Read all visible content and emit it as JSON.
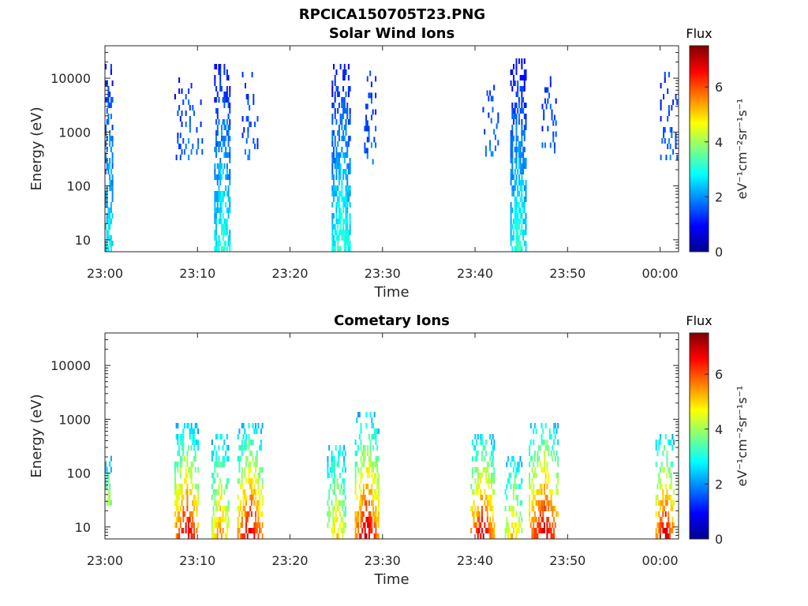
{
  "figure_title": "RPCICA150705T23.PNG",
  "colormap": [
    "#00008f",
    "#0000ff",
    "#0080ff",
    "#00ffff",
    "#80ff80",
    "#ffff00",
    "#ff8000",
    "#ff0000",
    "#800000"
  ],
  "chart_data": [
    {
      "type": "heatmap",
      "title": "Solar Wind Ions",
      "xlabel": "Time",
      "ylabel": "Energy (eV)",
      "x_ticks": [
        "23:00",
        "23:10",
        "23:20",
        "23:30",
        "23:40",
        "23:50",
        "00:00"
      ],
      "y_ticks": [
        "10",
        "100",
        "1000",
        "10000"
      ],
      "y_scale": "log",
      "xlim_minutes": [
        0,
        62
      ],
      "ylim_eV": [
        6,
        40000
      ],
      "colorbar": {
        "title": "Flux",
        "label": "eV⁻¹cm⁻²sr⁻¹s⁻¹",
        "ticks": [
          "0",
          "2",
          "4",
          "6"
        ],
        "range": [
          0,
          7.5
        ]
      },
      "bursts": [
        {
          "t": [
            0.0,
            0.8
          ],
          "energy_eV": [
            6,
            15000
          ],
          "flux_at_low_E": 3.0,
          "flux_at_high_E": 1.2,
          "density": 0.7
        },
        {
          "t": [
            7.5,
            10.5
          ],
          "energy_eV": [
            300,
            9000
          ],
          "flux_at_low_E": 1.8,
          "flux_at_high_E": 1.3,
          "density": 0.2
        },
        {
          "t": [
            11.8,
            13.5
          ],
          "energy_eV": [
            6,
            17000
          ],
          "flux_at_low_E": 3.2,
          "flux_at_high_E": 1.1,
          "density": 0.65
        },
        {
          "t": [
            14.8,
            16.5
          ],
          "energy_eV": [
            300,
            12000
          ],
          "flux_at_low_E": 1.8,
          "flux_at_high_E": 1.3,
          "density": 0.25
        },
        {
          "t": [
            24.5,
            26.5
          ],
          "energy_eV": [
            6,
            16000
          ],
          "flux_at_low_E": 3.3,
          "flux_at_high_E": 1.1,
          "density": 0.7
        },
        {
          "t": [
            28.0,
            29.3
          ],
          "energy_eV": [
            250,
            11000
          ],
          "flux_at_low_E": 1.8,
          "flux_at_high_E": 1.3,
          "density": 0.25
        },
        {
          "t": [
            40.8,
            42.5
          ],
          "energy_eV": [
            350,
            8000
          ],
          "flux_at_low_E": 1.8,
          "flux_at_high_E": 1.3,
          "density": 0.25
        },
        {
          "t": [
            43.8,
            45.5
          ],
          "energy_eV": [
            6,
            20000
          ],
          "flux_at_low_E": 3.2,
          "flux_at_high_E": 1.0,
          "density": 0.75
        },
        {
          "t": [
            47.2,
            48.8
          ],
          "energy_eV": [
            400,
            9000
          ],
          "flux_at_low_E": 1.8,
          "flux_at_high_E": 1.3,
          "density": 0.25
        },
        {
          "t": [
            60.0,
            61.8
          ],
          "energy_eV": [
            300,
            12000
          ],
          "flux_at_low_E": 1.8,
          "flux_at_high_E": 1.3,
          "density": 0.25
        }
      ]
    },
    {
      "type": "heatmap",
      "title": "Cometary Ions",
      "xlabel": "Time",
      "ylabel": "Energy (eV)",
      "x_ticks": [
        "23:00",
        "23:10",
        "23:20",
        "23:30",
        "23:40",
        "23:50",
        "00:00"
      ],
      "y_ticks": [
        "10",
        "100",
        "1000",
        "10000"
      ],
      "y_scale": "log",
      "xlim_minutes": [
        0,
        62
      ],
      "ylim_eV": [
        6,
        40000
      ],
      "colorbar": {
        "title": "Flux",
        "label": "eV⁻¹cm⁻²sr⁻¹s⁻¹",
        "ticks": [
          "0",
          "2",
          "4",
          "6"
        ],
        "range": [
          0,
          7.5
        ]
      },
      "bursts": [
        {
          "t": [
            0.0,
            0.6
          ],
          "energy_eV": [
            25,
            200
          ],
          "flux_at_low_E": 4.3,
          "flux_at_high_E": 2.5,
          "density": 0.5
        },
        {
          "t": [
            7.5,
            10.0
          ],
          "energy_eV": [
            6,
            700
          ],
          "flux_at_low_E": 6.8,
          "flux_at_high_E": 2.6,
          "density": 0.55
        },
        {
          "t": [
            11.5,
            13.3
          ],
          "energy_eV": [
            6,
            500
          ],
          "flux_at_low_E": 5.5,
          "flux_at_high_E": 2.6,
          "density": 0.55
        },
        {
          "t": [
            14.3,
            17.0
          ],
          "energy_eV": [
            6,
            700
          ],
          "flux_at_low_E": 6.8,
          "flux_at_high_E": 2.6,
          "density": 0.6
        },
        {
          "t": [
            24.0,
            26.0
          ],
          "energy_eV": [
            6,
            300
          ],
          "flux_at_low_E": 5.0,
          "flux_at_high_E": 2.6,
          "density": 0.55
        },
        {
          "t": [
            27.0,
            29.5
          ],
          "energy_eV": [
            6,
            1200
          ],
          "flux_at_low_E": 6.9,
          "flux_at_high_E": 2.5,
          "density": 0.55
        },
        {
          "t": [
            39.5,
            42.0
          ],
          "energy_eV": [
            6,
            500
          ],
          "flux_at_low_E": 6.8,
          "flux_at_high_E": 2.6,
          "density": 0.55
        },
        {
          "t": [
            43.2,
            45.0
          ],
          "energy_eV": [
            6,
            200
          ],
          "flux_at_low_E": 5.2,
          "flux_at_high_E": 2.6,
          "density": 0.5
        },
        {
          "t": [
            45.8,
            49.0
          ],
          "energy_eV": [
            6,
            850
          ],
          "flux_at_low_E": 6.9,
          "flux_at_high_E": 2.6,
          "density": 0.55
        },
        {
          "t": [
            59.5,
            61.5
          ],
          "energy_eV": [
            6,
            500
          ],
          "flux_at_low_E": 6.8,
          "flux_at_high_E": 2.6,
          "density": 0.55
        }
      ]
    }
  ]
}
